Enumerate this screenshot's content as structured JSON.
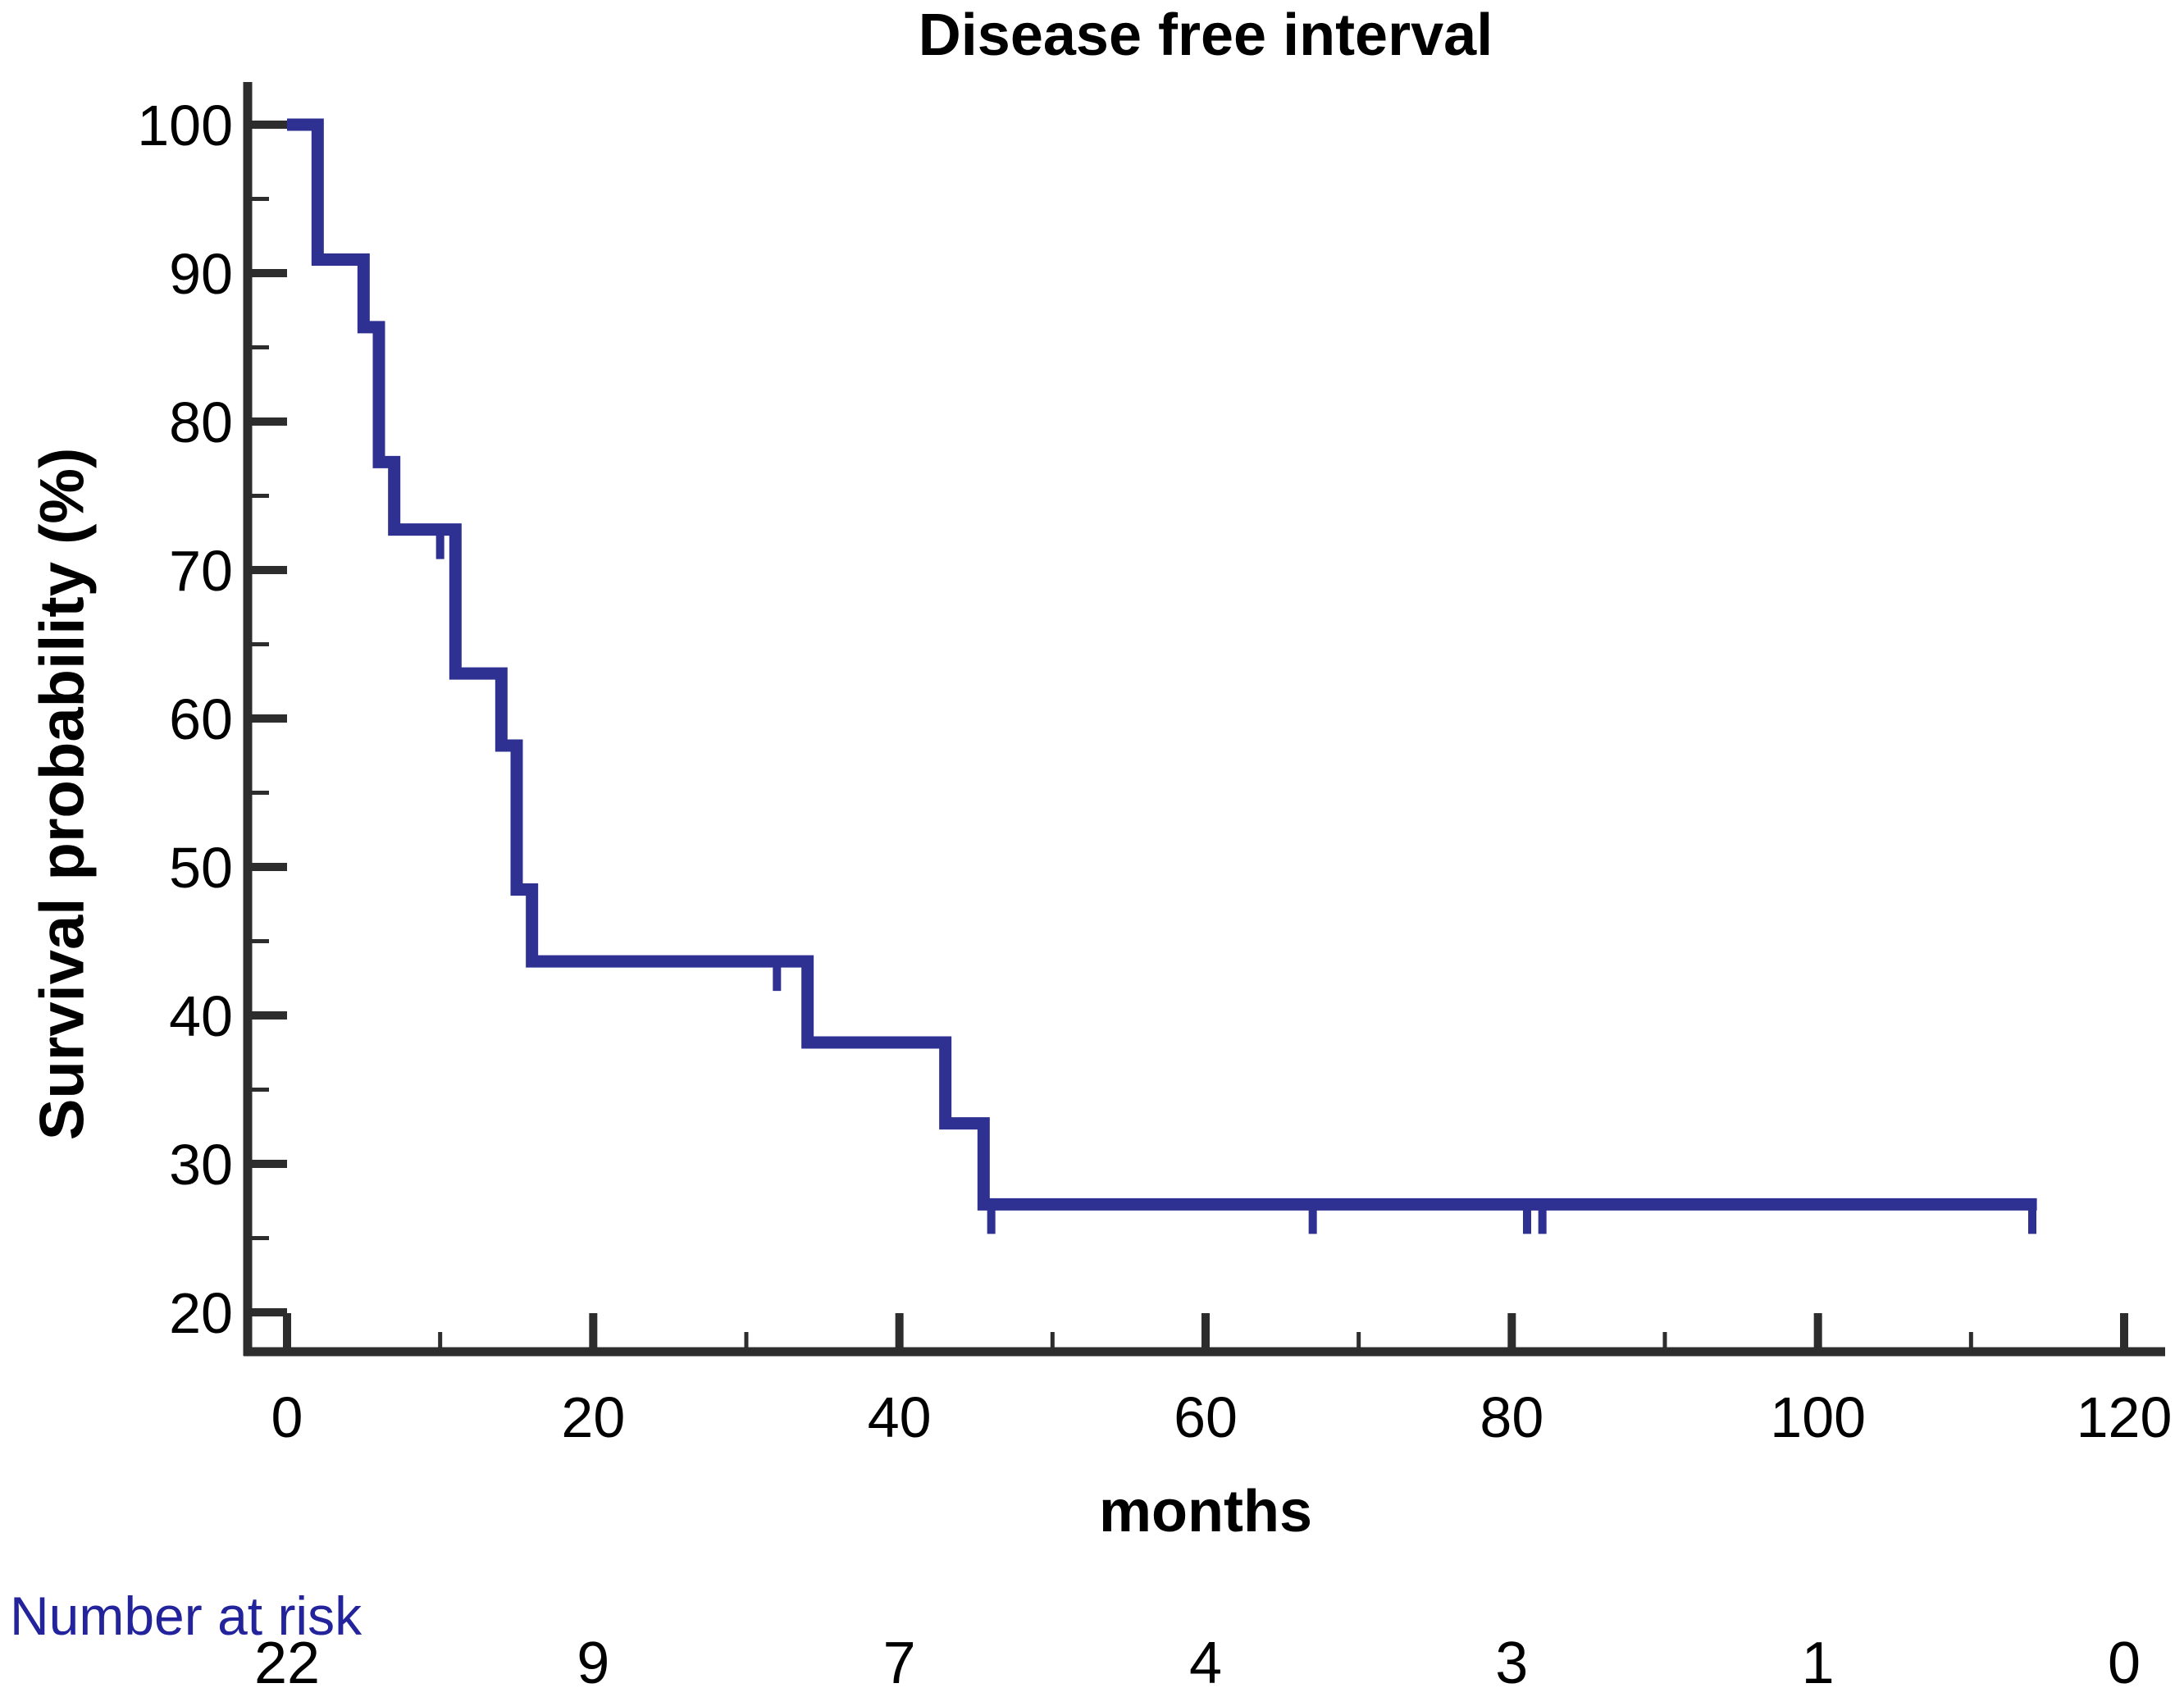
{
  "figure": {
    "title": "Disease free interval",
    "x_axis_label": "months",
    "y_axis_label": "Survival probability (%)"
  },
  "colors": {
    "curve": "#2E3192",
    "axis": "#2D2D2D",
    "tick_label": "#000000",
    "risk_label_text": "#23239B",
    "risk_count_text": "#000000",
    "background": "#FFFFFF"
  },
  "chart_data": {
    "type": "line",
    "subtype": "kaplan-meier-step",
    "title": "Disease free interval",
    "xlabel": "months",
    "ylabel": "Survival probability (%)",
    "xlim": [
      0,
      120
    ],
    "ylim": [
      20,
      100
    ],
    "x_major_ticks": [
      0,
      20,
      40,
      60,
      80,
      100,
      120
    ],
    "x_minor_ticks": [
      10,
      30,
      50,
      70,
      90,
      110
    ],
    "y_major_ticks": [
      100,
      90,
      80,
      70,
      60,
      50,
      40,
      30,
      20
    ],
    "y_minor_ticks": [
      95,
      85,
      75,
      65,
      55,
      45,
      35,
      25
    ],
    "grid": false,
    "legend": "none",
    "series": [
      {
        "name": "Disease free interval",
        "color": "#2E3192",
        "start_point": {
          "t": 0,
          "survival_pct": 100
        },
        "steps_t_survival_pct": [
          [
            2,
            90.91
          ],
          [
            5,
            86.36
          ],
          [
            6,
            77.27
          ],
          [
            7,
            72.73
          ],
          [
            11,
            63.03
          ],
          [
            14,
            58.18
          ],
          [
            15,
            48.48
          ],
          [
            16,
            43.64
          ],
          [
            34,
            38.18
          ],
          [
            43,
            32.73
          ],
          [
            45.5,
            27.27
          ]
        ],
        "curve_end_t": 114.3,
        "censor_marks_t_survival_pct": [
          [
            10,
            72.73
          ],
          [
            32,
            43.64
          ],
          [
            46,
            27.27
          ],
          [
            67,
            27.27
          ],
          [
            81,
            27.27
          ],
          [
            82,
            27.27
          ],
          [
            114,
            27.27
          ]
        ]
      }
    ],
    "number_at_risk": {
      "label": "Number at risk",
      "times": [
        0,
        20,
        40,
        60,
        80,
        100,
        120
      ],
      "counts": [
        22,
        9,
        7,
        4,
        3,
        1,
        0
      ]
    }
  }
}
